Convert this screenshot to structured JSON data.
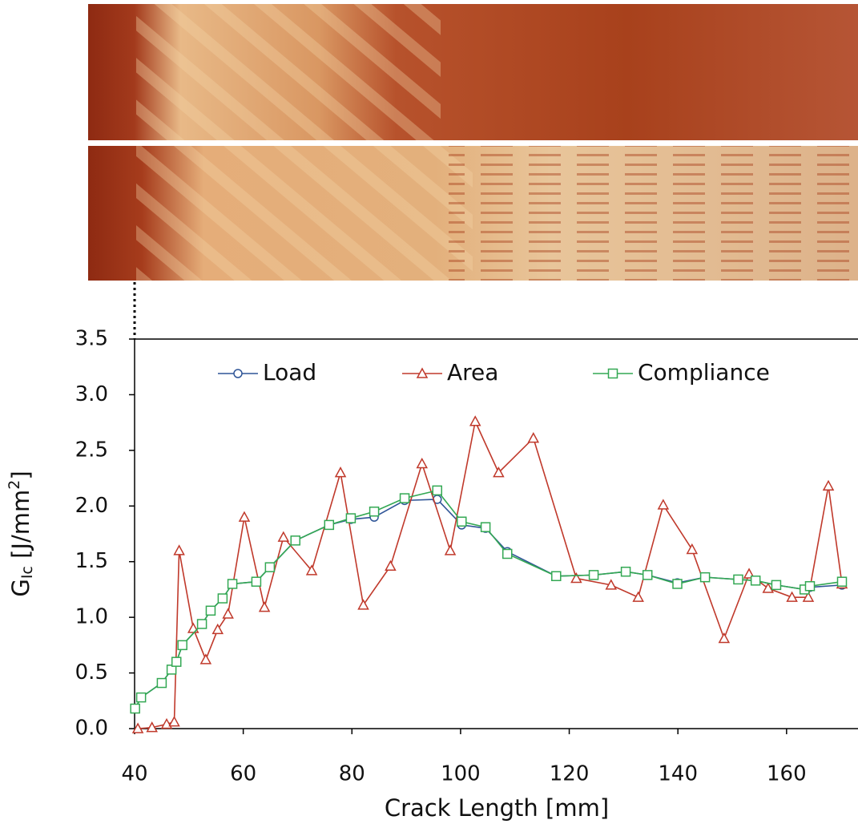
{
  "chart_data": {
    "type": "line",
    "xlabel": "Crack Length [mm]",
    "ylabel": [
      "G",
      "Ic",
      " [J/mm",
      "2",
      "]"
    ],
    "xlim": [
      40,
      173
    ],
    "xticks": [
      40,
      60,
      80,
      100,
      120,
      140,
      160
    ],
    "ylim": [
      0,
      3.5
    ],
    "yticks": [
      {
        "value": 0,
        "label": "0.0"
      },
      {
        "value": 0.5,
        "label": "0.5"
      },
      {
        "value": 1,
        "label": "1.0"
      },
      {
        "value": 1.5,
        "label": "1.5"
      },
      {
        "value": 2,
        "label": "2.0"
      },
      {
        "value": 2.5,
        "label": "2.5"
      },
      {
        "value": 3,
        "label": "3.0"
      },
      {
        "value": 3.5,
        "label": "3.5"
      }
    ],
    "legend": "top",
    "series": [
      {
        "name": "Load",
        "color": "#2f5597",
        "marker": "circle",
        "x": [
          40.1,
          41.2,
          45.0,
          46.8,
          47.7,
          48.8,
          52.4,
          54.0,
          56.2,
          58.0,
          62.4,
          64.9,
          69.6,
          75.8,
          79.8,
          84.1,
          89.7,
          95.7,
          100.2,
          104.6,
          108.6,
          117.6,
          124.5,
          130.4,
          134.4,
          139.9,
          145.0,
          151.1,
          154.3,
          158.1,
          163.3,
          164.3,
          170.2
        ],
        "values": [
          0.18,
          0.28,
          0.41,
          0.53,
          0.6,
          0.75,
          0.94,
          1.06,
          1.17,
          1.3,
          1.32,
          1.45,
          1.69,
          1.83,
          1.88,
          1.9,
          2.05,
          2.06,
          1.83,
          1.8,
          1.59,
          1.37,
          1.38,
          1.41,
          1.38,
          1.31,
          1.36,
          1.34,
          1.33,
          1.29,
          1.25,
          1.27,
          1.29
        ]
      },
      {
        "name": "Area",
        "color": "#c0392b",
        "marker": "triangle",
        "x": [
          40.6,
          43.2,
          45.9,
          47.3,
          48.2,
          50.8,
          53.1,
          55.3,
          57.2,
          60.2,
          63.9,
          67.4,
          72.6,
          77.9,
          82.1,
          87.1,
          92.9,
          98.1,
          102.7,
          107.0,
          113.4,
          121.3,
          127.7,
          132.7,
          137.3,
          142.6,
          148.5,
          153.1,
          156.6,
          161.0,
          164.0,
          167.7,
          170.2
        ],
        "values": [
          0.0,
          0.01,
          0.04,
          0.06,
          1.6,
          0.9,
          0.62,
          0.89,
          1.03,
          1.9,
          1.09,
          1.72,
          1.42,
          2.3,
          1.11,
          1.46,
          2.38,
          1.6,
          2.76,
          2.3,
          2.61,
          1.35,
          1.29,
          1.18,
          2.01,
          1.61,
          0.81,
          1.39,
          1.26,
          1.18,
          1.18,
          2.18,
          1.3
        ]
      },
      {
        "name": "Compliance",
        "color": "#33a853",
        "marker": "square",
        "x": [
          40.1,
          41.2,
          45.0,
          46.8,
          47.7,
          48.8,
          52.4,
          54.0,
          56.2,
          58.0,
          62.4,
          64.9,
          69.6,
          75.8,
          79.8,
          84.1,
          89.7,
          95.7,
          100.2,
          104.6,
          108.6,
          117.6,
          124.5,
          130.4,
          134.4,
          139.9,
          145.0,
          151.1,
          154.3,
          158.1,
          163.3,
          164.3,
          170.2
        ],
        "values": [
          0.18,
          0.28,
          0.41,
          0.53,
          0.6,
          0.75,
          0.94,
          1.06,
          1.17,
          1.3,
          1.32,
          1.45,
          1.69,
          1.83,
          1.89,
          1.95,
          2.07,
          2.14,
          1.86,
          1.81,
          1.57,
          1.37,
          1.38,
          1.41,
          1.38,
          1.3,
          1.36,
          1.34,
          1.33,
          1.29,
          1.25,
          1.28,
          1.32
        ]
      }
    ]
  }
}
